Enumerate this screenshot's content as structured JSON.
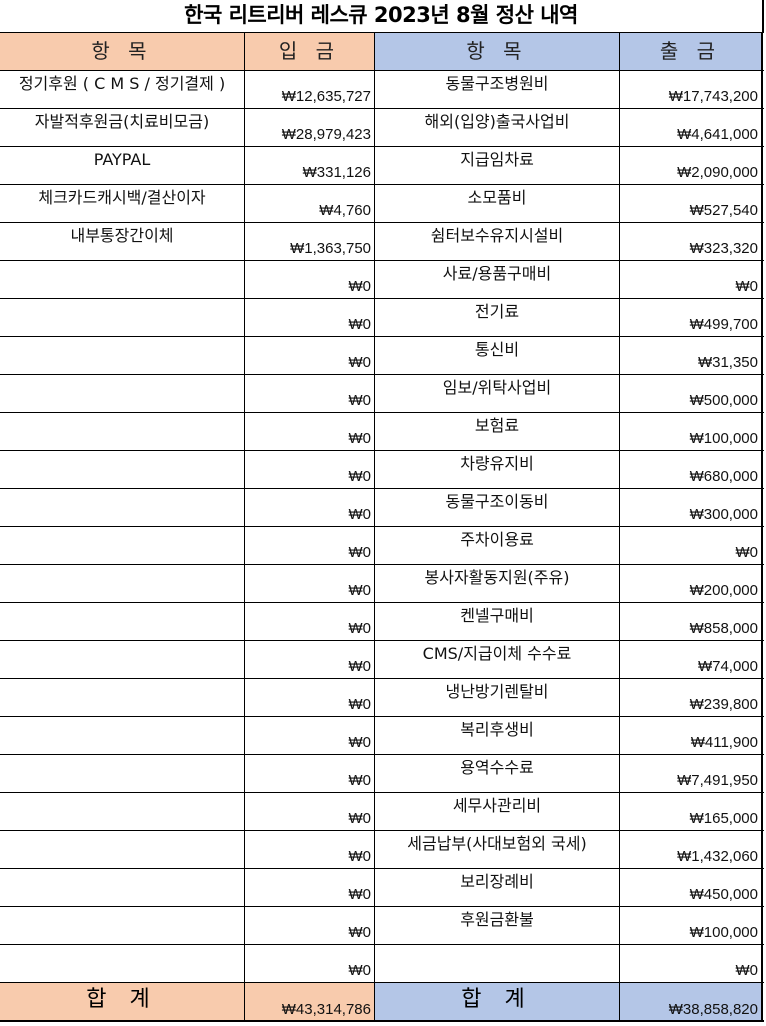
{
  "title": "한국 리트리버 레스큐 2023년 8월 정산 내역",
  "colors": {
    "income_header": "#f8cbad",
    "expense_header": "#b4c6e7"
  },
  "headers": {
    "income_item": "항 목",
    "income_amount": "입 금",
    "expense_item": "항 목",
    "expense_amount": "출 금"
  },
  "rows": [
    {
      "income_item": "정기후원 ( C M S / 정기결제 )",
      "income_amount": "₩12,635,727",
      "expense_item": "동물구조병원비",
      "expense_amount": "₩17,743,200"
    },
    {
      "income_item": "자발적후원금(치료비모금)",
      "income_amount": "₩28,979,423",
      "expense_item": "해외(입양)출국사업비",
      "expense_amount": "₩4,641,000"
    },
    {
      "income_item": "PAYPAL",
      "income_amount": "₩331,126",
      "expense_item": "지급임차료",
      "expense_amount": "₩2,090,000"
    },
    {
      "income_item": "체크카드캐시백/결산이자",
      "income_amount": "₩4,760",
      "expense_item": "소모품비",
      "expense_amount": "₩527,540"
    },
    {
      "income_item": "내부통장간이체",
      "income_amount": "₩1,363,750",
      "expense_item": "쉼터보수유지시설비",
      "expense_amount": "₩323,320"
    },
    {
      "income_item": "",
      "income_amount": "₩0",
      "expense_item": "사료/용품구매비",
      "expense_amount": "₩0"
    },
    {
      "income_item": "",
      "income_amount": "₩0",
      "expense_item": "전기료",
      "expense_amount": "₩499,700"
    },
    {
      "income_item": "",
      "income_amount": "₩0",
      "expense_item": "통신비",
      "expense_amount": "₩31,350"
    },
    {
      "income_item": "",
      "income_amount": "₩0",
      "expense_item": "임보/위탁사업비",
      "expense_amount": "₩500,000"
    },
    {
      "income_item": "",
      "income_amount": "₩0",
      "expense_item": "보험료",
      "expense_amount": "₩100,000"
    },
    {
      "income_item": "",
      "income_amount": "₩0",
      "expense_item": "차량유지비",
      "expense_amount": "₩680,000"
    },
    {
      "income_item": "",
      "income_amount": "₩0",
      "expense_item": "동물구조이동비",
      "expense_amount": "₩300,000"
    },
    {
      "income_item": "",
      "income_amount": "₩0",
      "expense_item": "주차이용료",
      "expense_amount": "₩0"
    },
    {
      "income_item": "",
      "income_amount": "₩0",
      "expense_item": "봉사자활동지원(주유)",
      "expense_amount": "₩200,000"
    },
    {
      "income_item": "",
      "income_amount": "₩0",
      "expense_item": "켄넬구매비",
      "expense_amount": "₩858,000"
    },
    {
      "income_item": "",
      "income_amount": "₩0",
      "expense_item": "CMS/지급이체 수수료",
      "expense_amount": "₩74,000"
    },
    {
      "income_item": "",
      "income_amount": "₩0",
      "expense_item": "냉난방기렌탈비",
      "expense_amount": "₩239,800"
    },
    {
      "income_item": "",
      "income_amount": "₩0",
      "expense_item": "복리후생비",
      "expense_amount": "₩411,900"
    },
    {
      "income_item": "",
      "income_amount": "₩0",
      "expense_item": "용역수수료",
      "expense_amount": "₩7,491,950"
    },
    {
      "income_item": "",
      "income_amount": "₩0",
      "expense_item": "세무사관리비",
      "expense_amount": "₩165,000"
    },
    {
      "income_item": "",
      "income_amount": "₩0",
      "expense_item": "세금납부(사대보험외 국세)",
      "expense_amount": "₩1,432,060"
    },
    {
      "income_item": "",
      "income_amount": "₩0",
      "expense_item": "보리장례비",
      "expense_amount": "₩450,000"
    },
    {
      "income_item": "",
      "income_amount": "₩0",
      "expense_item": "후원금환불",
      "expense_amount": "₩100,000"
    },
    {
      "income_item": "",
      "income_amount": "₩0",
      "expense_item": "",
      "expense_amount": "₩0"
    }
  ],
  "totals": {
    "income_label": "합 계",
    "income_total": "₩43,314,786",
    "expense_label": "합 계",
    "expense_total": "₩38,858,820"
  }
}
